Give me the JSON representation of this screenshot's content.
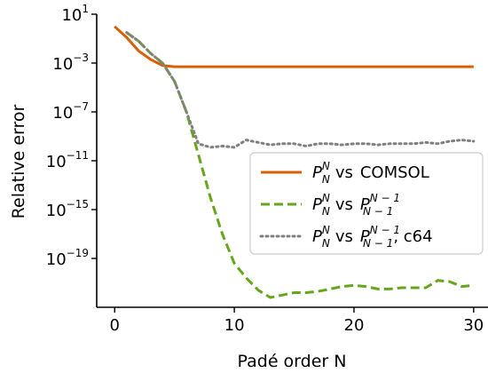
{
  "chart_data": {
    "type": "line",
    "xlabel": "Padé order N",
    "ylabel": "Relative error",
    "xlim": [
      -1.5,
      31.2
    ],
    "ylim_exponent": [
      -23,
      1
    ],
    "yscale": "log",
    "x_ticks": [
      0,
      10,
      20,
      30
    ],
    "y_tick_exponents": [
      1,
      -3,
      -7,
      -11,
      -15,
      -19
    ],
    "y_tick_base": "10",
    "grid": false,
    "legend_position": "center-right",
    "series": [
      {
        "name": "P_N^N vs COMSOL",
        "legend": {
          "P": "P",
          "sub1": "N",
          "sup1": "N",
          "vs": "vs",
          "rest": "COMSOL"
        },
        "color": "#d95f02",
        "style": "solid",
        "x": [
          0,
          1,
          2,
          3,
          4,
          5,
          6,
          7,
          8,
          9,
          10,
          11,
          12,
          13,
          14,
          15,
          16,
          17,
          18,
          19,
          20,
          21,
          22,
          23,
          24,
          25,
          26,
          27,
          28,
          29,
          30
        ],
        "log10_y": [
          0.0,
          -0.9,
          -2.0,
          -2.7,
          -3.2,
          -3.3,
          -3.3,
          -3.3,
          -3.3,
          -3.3,
          -3.3,
          -3.3,
          -3.3,
          -3.3,
          -3.3,
          -3.3,
          -3.3,
          -3.3,
          -3.3,
          -3.3,
          -3.3,
          -3.3,
          -3.3,
          -3.3,
          -3.3,
          -3.3,
          -3.3,
          -3.3,
          -3.3,
          -3.3,
          -3.3
        ]
      },
      {
        "name": "P_N^N vs P_{N-1}^{N-1}",
        "legend": {
          "P": "P",
          "sub1": "N",
          "sup1": "N",
          "vs": "vs",
          "P2": "P",
          "sub2": "N − 1",
          "sup2": "N − 1"
        },
        "color": "#66a61e",
        "style": "dashed",
        "x": [
          1,
          2,
          3,
          4,
          5,
          6,
          7,
          8,
          9,
          10,
          11,
          12,
          13,
          14,
          15,
          16,
          17,
          18,
          19,
          20,
          21,
          22,
          23,
          24,
          25,
          26,
          27,
          28,
          29,
          30
        ],
        "log10_y": [
          -0.5,
          -1.2,
          -2.2,
          -3.0,
          -4.5,
          -7.0,
          -10.5,
          -14.0,
          -17.0,
          -19.4,
          -20.6,
          -21.6,
          -22.2,
          -22.0,
          -21.8,
          -21.8,
          -21.7,
          -21.5,
          -21.3,
          -21.2,
          -21.3,
          -21.5,
          -21.5,
          -21.4,
          -21.4,
          -21.4,
          -20.8,
          -20.9,
          -21.3,
          -21.2
        ]
      },
      {
        "name": "P_N^N vs P_{N-1}^{N-1}, c64",
        "legend": {
          "P": "P",
          "sub1": "N",
          "sup1": "N",
          "vs": "vs",
          "P2": "P",
          "sub2": "N − 1",
          "sup2": "N − 1",
          "rest": ", c64"
        },
        "color": "#808080",
        "style": "dotted",
        "x": [
          1,
          2,
          3,
          4,
          5,
          6,
          7,
          8,
          9,
          10,
          11,
          12,
          13,
          14,
          15,
          16,
          17,
          18,
          19,
          20,
          21,
          22,
          23,
          24,
          25,
          26,
          27,
          28,
          29,
          30
        ],
        "log10_y": [
          -0.5,
          -1.2,
          -2.2,
          -3.0,
          -4.5,
          -7.0,
          -9.6,
          -9.9,
          -9.8,
          -9.9,
          -9.3,
          -9.5,
          -9.7,
          -9.6,
          -9.6,
          -9.8,
          -9.6,
          -9.6,
          -9.7,
          -9.6,
          -9.6,
          -9.7,
          -9.6,
          -9.6,
          -9.6,
          -9.5,
          -9.6,
          -9.4,
          -9.3,
          -9.4
        ]
      }
    ]
  }
}
